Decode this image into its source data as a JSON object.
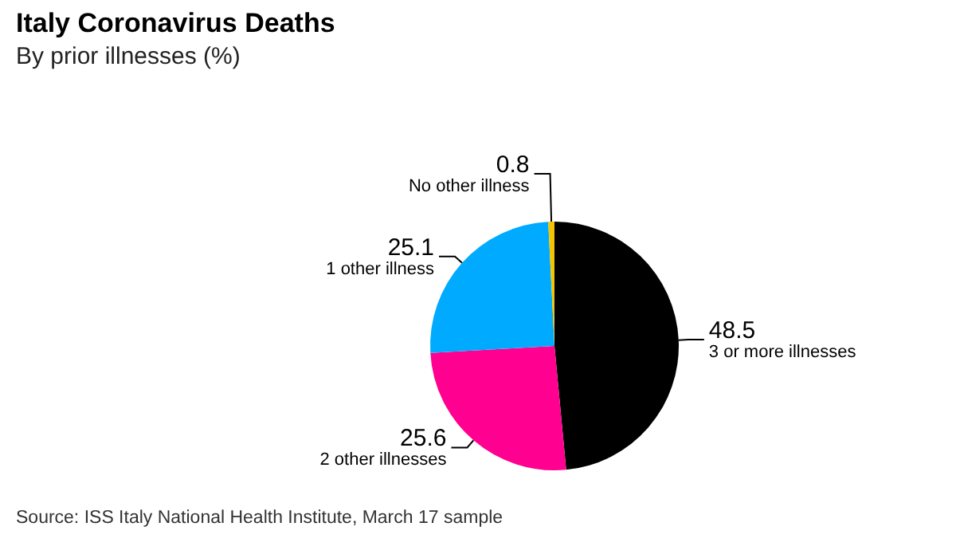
{
  "chart_data": {
    "type": "pie",
    "title": "Italy Coronavirus Deaths",
    "subtitle": "By prior illnesses (%)",
    "categories": [
      "3 or more illnesses",
      "2 other illnesses",
      "1 other illness",
      "No other illness"
    ],
    "values": [
      48.5,
      25.6,
      25.1,
      0.8
    ],
    "colors": [
      "#000000",
      "#ff0090",
      "#00aaff",
      "#f5c400"
    ],
    "data_labels": true,
    "legend": false,
    "annotations": [
      "Source: ISS Italy National Health Institute, March 17 sample"
    ]
  }
}
